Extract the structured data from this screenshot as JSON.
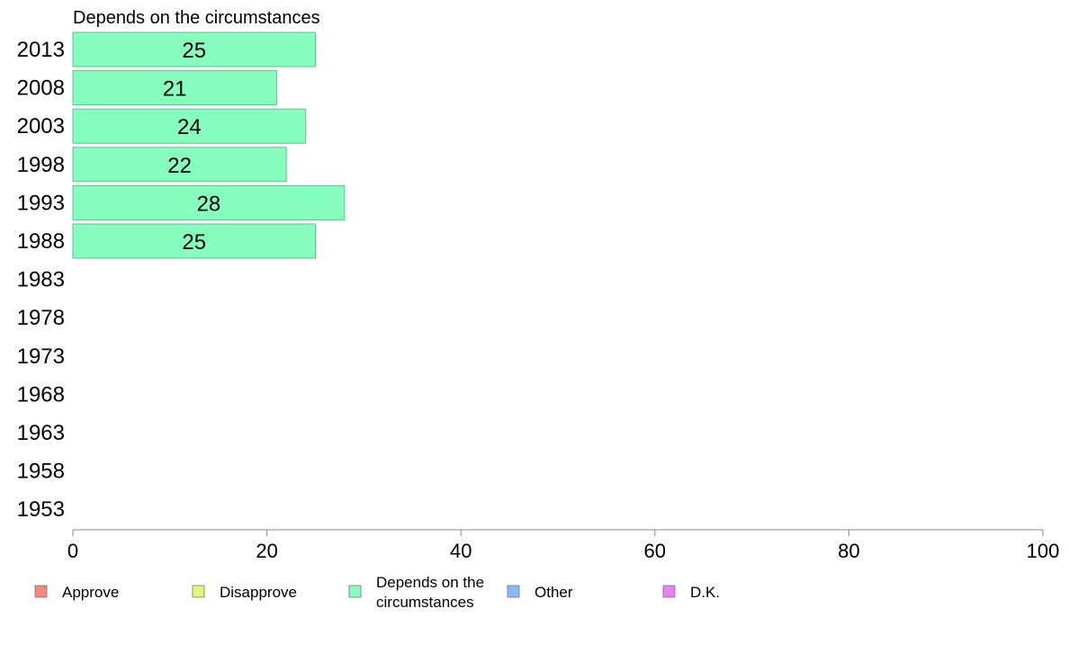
{
  "chart_data": {
    "type": "bar",
    "orientation": "horizontal",
    "title": "Depends on the circumstances",
    "categories": [
      "2013",
      "2008",
      "2003",
      "1998",
      "1993",
      "1988",
      "1983",
      "1978",
      "1973",
      "1968",
      "1963",
      "1958",
      "1953"
    ],
    "series": [
      {
        "name": "Depends on the circumstances",
        "values": [
          25,
          21,
          24,
          22,
          28,
          25,
          null,
          null,
          null,
          null,
          null,
          null,
          null
        ]
      }
    ],
    "xlim": [
      0,
      100
    ],
    "xticks": [
      0,
      20,
      40,
      60,
      80,
      100
    ],
    "xlabel": "",
    "ylabel": "",
    "grid": false,
    "legend_position": "bottom",
    "legend": [
      {
        "label": "Approve",
        "color": "#f4877f"
      },
      {
        "label": "Disapprove",
        "color": "#e6f27a"
      },
      {
        "label": "Depends on the circumstances",
        "color": "#86ffbe"
      },
      {
        "label": "Other",
        "color": "#86b9f5"
      },
      {
        "label": "D.K.",
        "color": "#ec80f5"
      }
    ],
    "bar_color": "#86ffbe",
    "bar_edge_color": "#5fbf8c"
  }
}
